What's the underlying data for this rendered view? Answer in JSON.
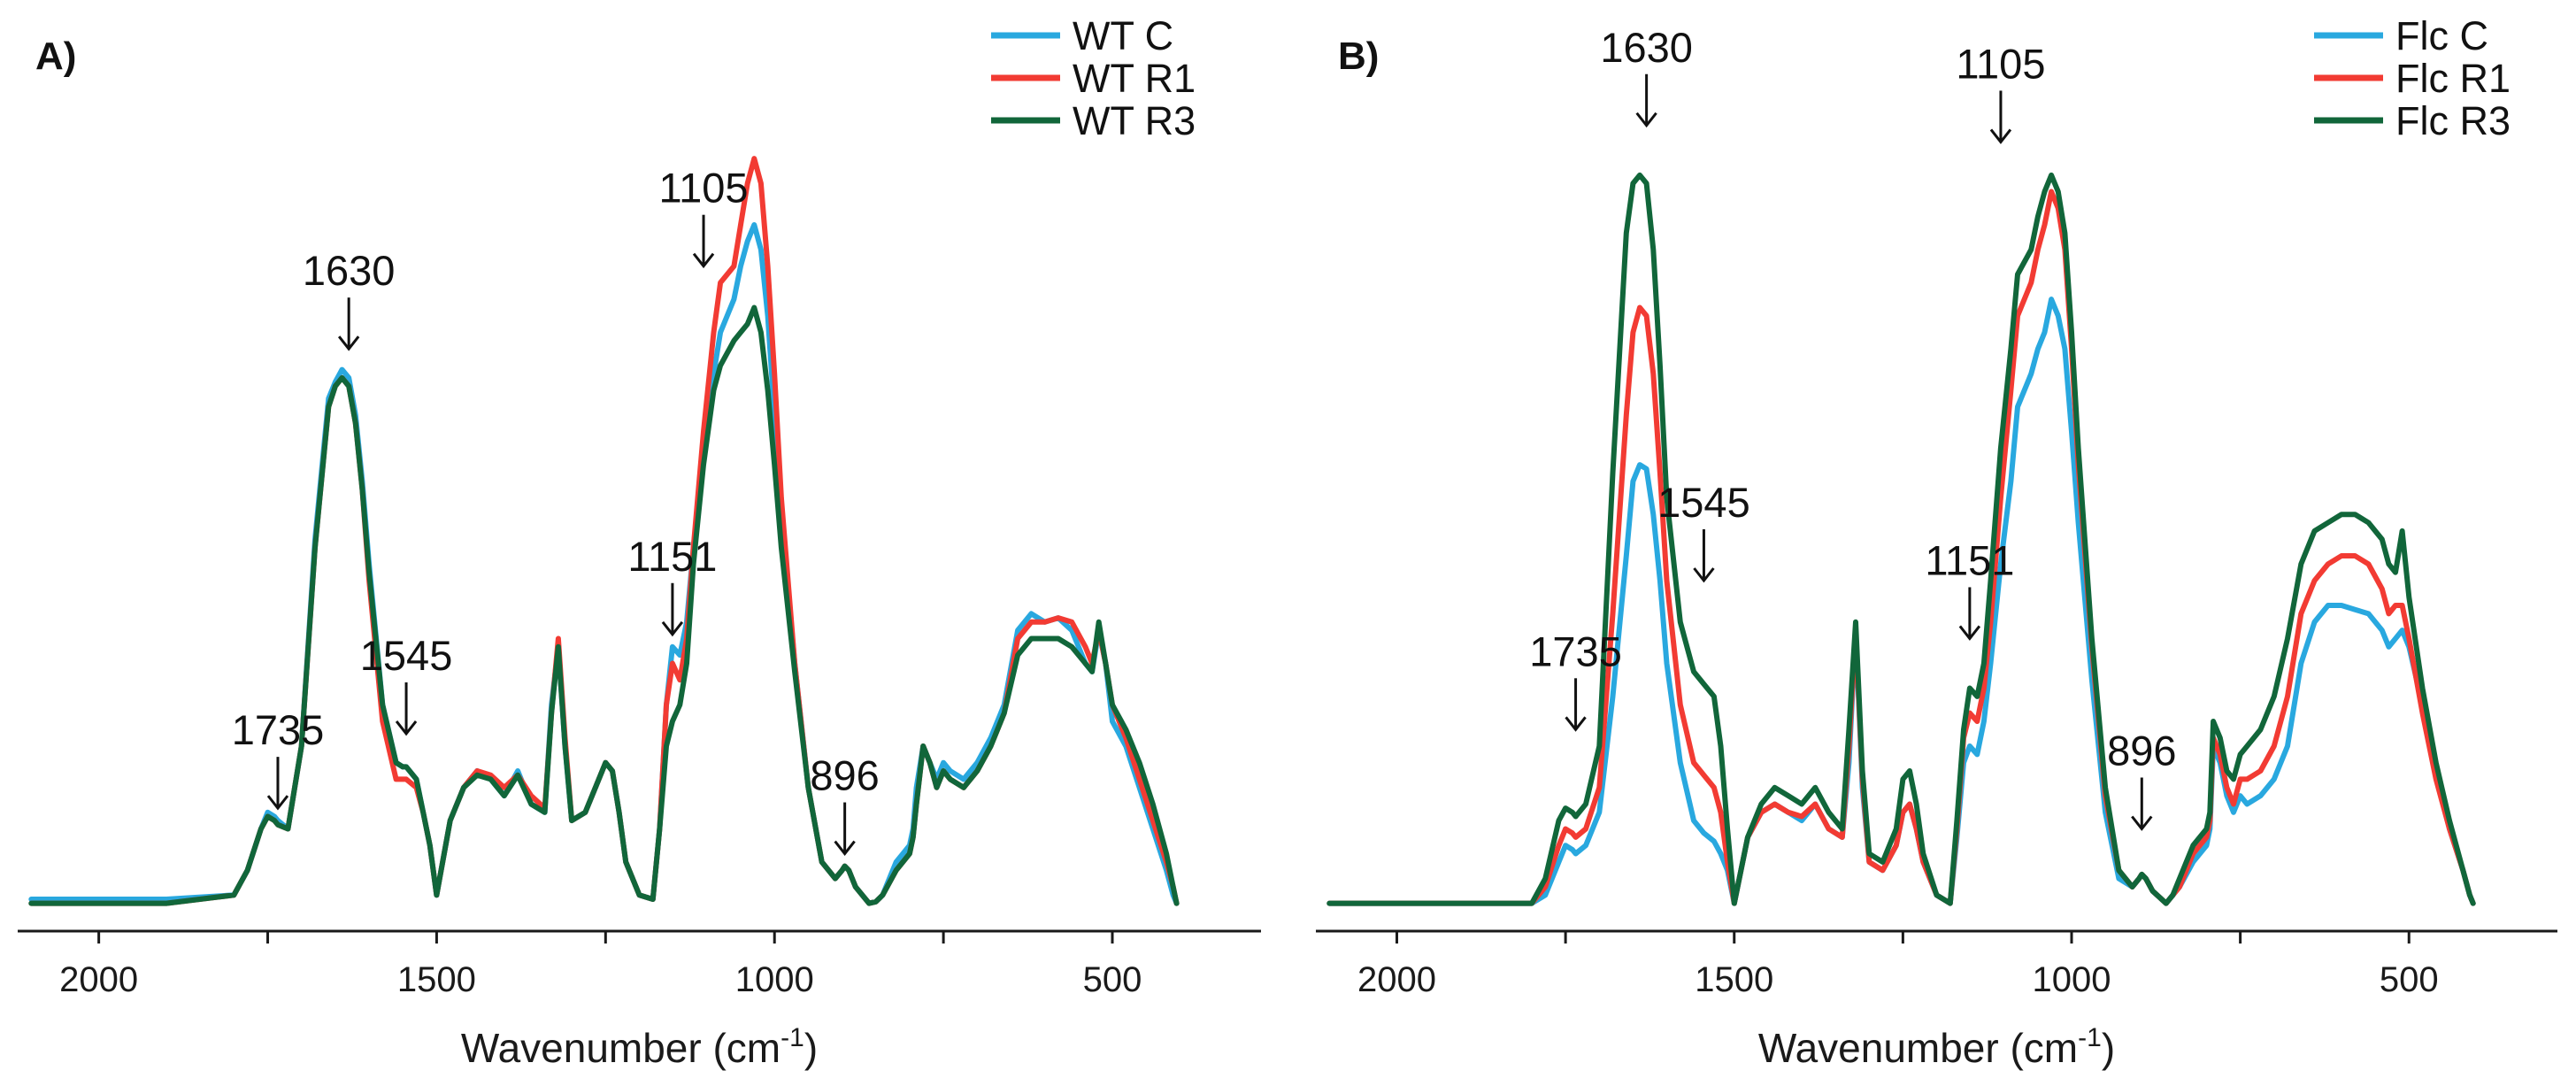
{
  "colors": {
    "c": "#29a8df",
    "r1": "#f23b33",
    "r3": "#11663a",
    "axis": "#1a1a1a",
    "arrow": "#111111"
  },
  "chart_data": [
    {
      "type": "line",
      "panel_label": "A)",
      "xlabel": "Wavenumber (cm",
      "xlabel_sup": "-1",
      "xlabel_close": ")",
      "ylabel": "",
      "x_reversed": true,
      "xlim": [
        2120,
        280
      ],
      "ylim": [
        0,
        1.0
      ],
      "xticks": [
        2000,
        1500,
        1000,
        500
      ],
      "minor_xticks": [
        1750,
        1250,
        750,
        250
      ],
      "legend_position": "top-right",
      "x": [
        2100,
        1900,
        1800,
        1780,
        1760,
        1750,
        1740,
        1735,
        1720,
        1700,
        1680,
        1660,
        1650,
        1640,
        1630,
        1620,
        1610,
        1600,
        1580,
        1560,
        1550,
        1545,
        1530,
        1520,
        1510,
        1500,
        1480,
        1460,
        1440,
        1420,
        1400,
        1380,
        1360,
        1340,
        1330,
        1320,
        1310,
        1300,
        1280,
        1260,
        1250,
        1240,
        1230,
        1220,
        1200,
        1180,
        1170,
        1160,
        1151,
        1140,
        1130,
        1120,
        1105,
        1090,
        1080,
        1060,
        1050,
        1040,
        1030,
        1020,
        1010,
        1000,
        990,
        970,
        950,
        930,
        910,
        900,
        896,
        890,
        880,
        860,
        850,
        840,
        820,
        800,
        795,
        790,
        780,
        770,
        760,
        750,
        740,
        720,
        700,
        680,
        660,
        640,
        620,
        600,
        580,
        560,
        540,
        530,
        520,
        510,
        500,
        480,
        460,
        440,
        420,
        410,
        405
      ],
      "series": [
        {
          "name": "WT C",
          "color_key": "c",
          "values": [
            0.015,
            0.015,
            0.02,
            0.05,
            0.1,
            0.12,
            0.115,
            0.11,
            0.1,
            0.2,
            0.45,
            0.62,
            0.64,
            0.655,
            0.645,
            0.6,
            0.52,
            0.42,
            0.25,
            0.18,
            0.175,
            0.175,
            0.16,
            0.12,
            0.08,
            0.02,
            0.11,
            0.15,
            0.17,
            0.16,
            0.14,
            0.17,
            0.13,
            0.12,
            0.25,
            0.32,
            0.2,
            0.11,
            0.12,
            0.16,
            0.18,
            0.17,
            0.12,
            0.06,
            0.02,
            0.015,
            0.1,
            0.25,
            0.32,
            0.31,
            0.35,
            0.44,
            0.55,
            0.65,
            0.7,
            0.74,
            0.78,
            0.81,
            0.83,
            0.8,
            0.72,
            0.6,
            0.48,
            0.3,
            0.15,
            0.06,
            0.04,
            0.05,
            0.055,
            0.05,
            0.03,
            0.01,
            0.012,
            0.02,
            0.06,
            0.08,
            0.1,
            0.15,
            0.2,
            0.18,
            0.16,
            0.18,
            0.17,
            0.16,
            0.18,
            0.21,
            0.25,
            0.34,
            0.36,
            0.35,
            0.355,
            0.34,
            0.3,
            0.29,
            0.34,
            0.3,
            0.23,
            0.2,
            0.15,
            0.1,
            0.05,
            0.02,
            0.01
          ]
        },
        {
          "name": "WT R1",
          "color_key": "r1",
          "values": [
            0.01,
            0.01,
            0.02,
            0.05,
            0.1,
            0.115,
            0.11,
            0.105,
            0.1,
            0.2,
            0.44,
            0.61,
            0.635,
            0.645,
            0.635,
            0.59,
            0.51,
            0.4,
            0.23,
            0.16,
            0.16,
            0.16,
            0.15,
            0.12,
            0.08,
            0.02,
            0.11,
            0.15,
            0.17,
            0.165,
            0.15,
            0.165,
            0.14,
            0.125,
            0.24,
            0.33,
            0.21,
            0.11,
            0.12,
            0.16,
            0.18,
            0.17,
            0.12,
            0.06,
            0.02,
            0.015,
            0.1,
            0.25,
            0.3,
            0.28,
            0.33,
            0.44,
            0.58,
            0.7,
            0.76,
            0.78,
            0.83,
            0.88,
            0.91,
            0.88,
            0.78,
            0.65,
            0.5,
            0.3,
            0.15,
            0.06,
            0.04,
            0.05,
            0.055,
            0.05,
            0.03,
            0.01,
            0.012,
            0.02,
            0.05,
            0.07,
            0.09,
            0.13,
            0.2,
            0.18,
            0.15,
            0.17,
            0.16,
            0.15,
            0.17,
            0.2,
            0.24,
            0.33,
            0.35,
            0.35,
            0.355,
            0.35,
            0.32,
            0.3,
            0.34,
            0.3,
            0.25,
            0.21,
            0.16,
            0.11,
            0.06,
            0.03,
            0.01
          ]
        },
        {
          "name": "WT R3",
          "color_key": "r3",
          "values": [
            0.01,
            0.01,
            0.02,
            0.05,
            0.1,
            0.115,
            0.11,
            0.105,
            0.1,
            0.2,
            0.44,
            0.61,
            0.635,
            0.645,
            0.635,
            0.59,
            0.51,
            0.41,
            0.25,
            0.18,
            0.175,
            0.175,
            0.16,
            0.12,
            0.08,
            0.02,
            0.11,
            0.15,
            0.165,
            0.16,
            0.14,
            0.165,
            0.13,
            0.12,
            0.24,
            0.32,
            0.2,
            0.11,
            0.12,
            0.16,
            0.18,
            0.17,
            0.12,
            0.06,
            0.02,
            0.015,
            0.1,
            0.2,
            0.23,
            0.25,
            0.3,
            0.42,
            0.54,
            0.63,
            0.66,
            0.69,
            0.7,
            0.71,
            0.73,
            0.7,
            0.63,
            0.54,
            0.44,
            0.29,
            0.15,
            0.06,
            0.04,
            0.05,
            0.055,
            0.05,
            0.03,
            0.01,
            0.012,
            0.02,
            0.05,
            0.07,
            0.09,
            0.13,
            0.2,
            0.18,
            0.15,
            0.17,
            0.16,
            0.15,
            0.17,
            0.2,
            0.24,
            0.31,
            0.33,
            0.33,
            0.33,
            0.32,
            0.3,
            0.29,
            0.35,
            0.3,
            0.25,
            0.22,
            0.18,
            0.13,
            0.07,
            0.03,
            0.01
          ]
        }
      ],
      "annotations": [
        {
          "label": "1735",
          "x": 1735,
          "y": 0.125
        },
        {
          "label": "1545",
          "x": 1545,
          "y": 0.215
        },
        {
          "label": "1630",
          "x": 1630,
          "y": 0.68
        },
        {
          "label": "1151",
          "x": 1151,
          "y": 0.335
        },
        {
          "label": "1105",
          "x": 1105,
          "y": 0.78
        },
        {
          "label": "896",
          "x": 896,
          "y": 0.07
        }
      ]
    },
    {
      "type": "line",
      "panel_label": "B)",
      "xlabel": "Wavenumber (cm",
      "xlabel_sup": "-1",
      "xlabel_close": ")",
      "ylabel": "",
      "x_reversed": true,
      "xlim": [
        2120,
        280
      ],
      "ylim": [
        0,
        1.0
      ],
      "xticks": [
        2000,
        1500,
        1000,
        500
      ],
      "minor_xticks": [
        1750,
        1250,
        750,
        250
      ],
      "legend_position": "top-right",
      "x": [
        2100,
        1900,
        1800,
        1780,
        1760,
        1750,
        1740,
        1735,
        1720,
        1700,
        1680,
        1660,
        1650,
        1640,
        1630,
        1620,
        1610,
        1600,
        1580,
        1560,
        1550,
        1545,
        1530,
        1520,
        1510,
        1500,
        1480,
        1460,
        1440,
        1420,
        1400,
        1380,
        1360,
        1340,
        1330,
        1320,
        1310,
        1300,
        1280,
        1260,
        1250,
        1240,
        1230,
        1220,
        1200,
        1180,
        1170,
        1160,
        1151,
        1140,
        1130,
        1120,
        1105,
        1090,
        1080,
        1060,
        1050,
        1040,
        1030,
        1020,
        1010,
        1000,
        990,
        970,
        950,
        930,
        910,
        900,
        896,
        890,
        880,
        860,
        850,
        840,
        820,
        800,
        795,
        790,
        780,
        770,
        760,
        750,
        740,
        720,
        700,
        680,
        660,
        640,
        620,
        600,
        580,
        560,
        540,
        530,
        520,
        510,
        500,
        480,
        460,
        440,
        420,
        410,
        405
      ],
      "series": [
        {
          "name": "Flc C",
          "color_key": "c",
          "values": [
            0.01,
            0.01,
            0.01,
            0.02,
            0.06,
            0.08,
            0.075,
            0.07,
            0.08,
            0.12,
            0.26,
            0.43,
            0.52,
            0.54,
            0.535,
            0.48,
            0.4,
            0.3,
            0.18,
            0.11,
            0.1,
            0.095,
            0.085,
            0.07,
            0.05,
            0.01,
            0.09,
            0.12,
            0.13,
            0.12,
            0.11,
            0.13,
            0.1,
            0.09,
            0.18,
            0.34,
            0.15,
            0.06,
            0.05,
            0.08,
            0.12,
            0.13,
            0.1,
            0.06,
            0.02,
            0.01,
            0.09,
            0.18,
            0.2,
            0.19,
            0.23,
            0.3,
            0.42,
            0.52,
            0.61,
            0.65,
            0.68,
            0.7,
            0.74,
            0.72,
            0.68,
            0.58,
            0.47,
            0.28,
            0.12,
            0.04,
            0.03,
            0.04,
            0.045,
            0.04,
            0.025,
            0.01,
            0.02,
            0.03,
            0.06,
            0.08,
            0.1,
            0.2,
            0.18,
            0.14,
            0.12,
            0.14,
            0.13,
            0.14,
            0.16,
            0.2,
            0.3,
            0.35,
            0.37,
            0.37,
            0.365,
            0.36,
            0.34,
            0.32,
            0.33,
            0.34,
            0.32,
            0.25,
            0.17,
            0.1,
            0.05,
            0.02,
            0.01
          ]
        },
        {
          "name": "Flc R1",
          "color_key": "r1",
          "values": [
            0.01,
            0.01,
            0.01,
            0.03,
            0.08,
            0.1,
            0.095,
            0.09,
            0.1,
            0.15,
            0.36,
            0.6,
            0.7,
            0.73,
            0.72,
            0.65,
            0.53,
            0.4,
            0.25,
            0.18,
            0.17,
            0.165,
            0.15,
            0.12,
            0.06,
            0.01,
            0.09,
            0.12,
            0.13,
            0.12,
            0.115,
            0.13,
            0.1,
            0.09,
            0.2,
            0.34,
            0.16,
            0.06,
            0.05,
            0.08,
            0.12,
            0.13,
            0.1,
            0.06,
            0.02,
            0.01,
            0.1,
            0.21,
            0.24,
            0.23,
            0.27,
            0.35,
            0.5,
            0.63,
            0.72,
            0.76,
            0.8,
            0.83,
            0.87,
            0.85,
            0.8,
            0.68,
            0.54,
            0.32,
            0.14,
            0.05,
            0.03,
            0.04,
            0.045,
            0.04,
            0.025,
            0.01,
            0.02,
            0.03,
            0.07,
            0.09,
            0.11,
            0.21,
            0.19,
            0.15,
            0.13,
            0.16,
            0.16,
            0.17,
            0.2,
            0.26,
            0.36,
            0.4,
            0.42,
            0.43,
            0.43,
            0.42,
            0.39,
            0.36,
            0.37,
            0.37,
            0.33,
            0.24,
            0.16,
            0.1,
            0.05,
            0.02,
            0.01
          ]
        },
        {
          "name": "Flc R3",
          "color_key": "r3",
          "values": [
            0.01,
            0.01,
            0.01,
            0.04,
            0.11,
            0.125,
            0.12,
            0.115,
            0.13,
            0.2,
            0.53,
            0.82,
            0.88,
            0.89,
            0.88,
            0.8,
            0.66,
            0.5,
            0.35,
            0.29,
            0.28,
            0.275,
            0.26,
            0.2,
            0.1,
            0.01,
            0.09,
            0.13,
            0.15,
            0.14,
            0.13,
            0.15,
            0.12,
            0.1,
            0.22,
            0.35,
            0.17,
            0.07,
            0.06,
            0.1,
            0.16,
            0.17,
            0.13,
            0.07,
            0.02,
            0.01,
            0.11,
            0.22,
            0.27,
            0.26,
            0.3,
            0.4,
            0.56,
            0.68,
            0.77,
            0.8,
            0.84,
            0.87,
            0.89,
            0.87,
            0.82,
            0.7,
            0.56,
            0.33,
            0.15,
            0.05,
            0.03,
            0.04,
            0.045,
            0.04,
            0.025,
            0.01,
            0.02,
            0.04,
            0.08,
            0.1,
            0.12,
            0.23,
            0.21,
            0.17,
            0.16,
            0.19,
            0.2,
            0.22,
            0.26,
            0.33,
            0.42,
            0.46,
            0.47,
            0.48,
            0.48,
            0.47,
            0.45,
            0.42,
            0.41,
            0.46,
            0.38,
            0.27,
            0.18,
            0.11,
            0.05,
            0.02,
            0.01
          ]
        }
      ],
      "annotations": [
        {
          "label": "1735",
          "x": 1735,
          "y": 0.22
        },
        {
          "label": "1545",
          "x": 1545,
          "y": 0.4
        },
        {
          "label": "1630",
          "x": 1630,
          "y": 0.95
        },
        {
          "label": "1151",
          "x": 1151,
          "y": 0.33
        },
        {
          "label": "1105",
          "x": 1105,
          "y": 0.93
        },
        {
          "label": "896",
          "x": 896,
          "y": 0.1
        }
      ]
    }
  ]
}
